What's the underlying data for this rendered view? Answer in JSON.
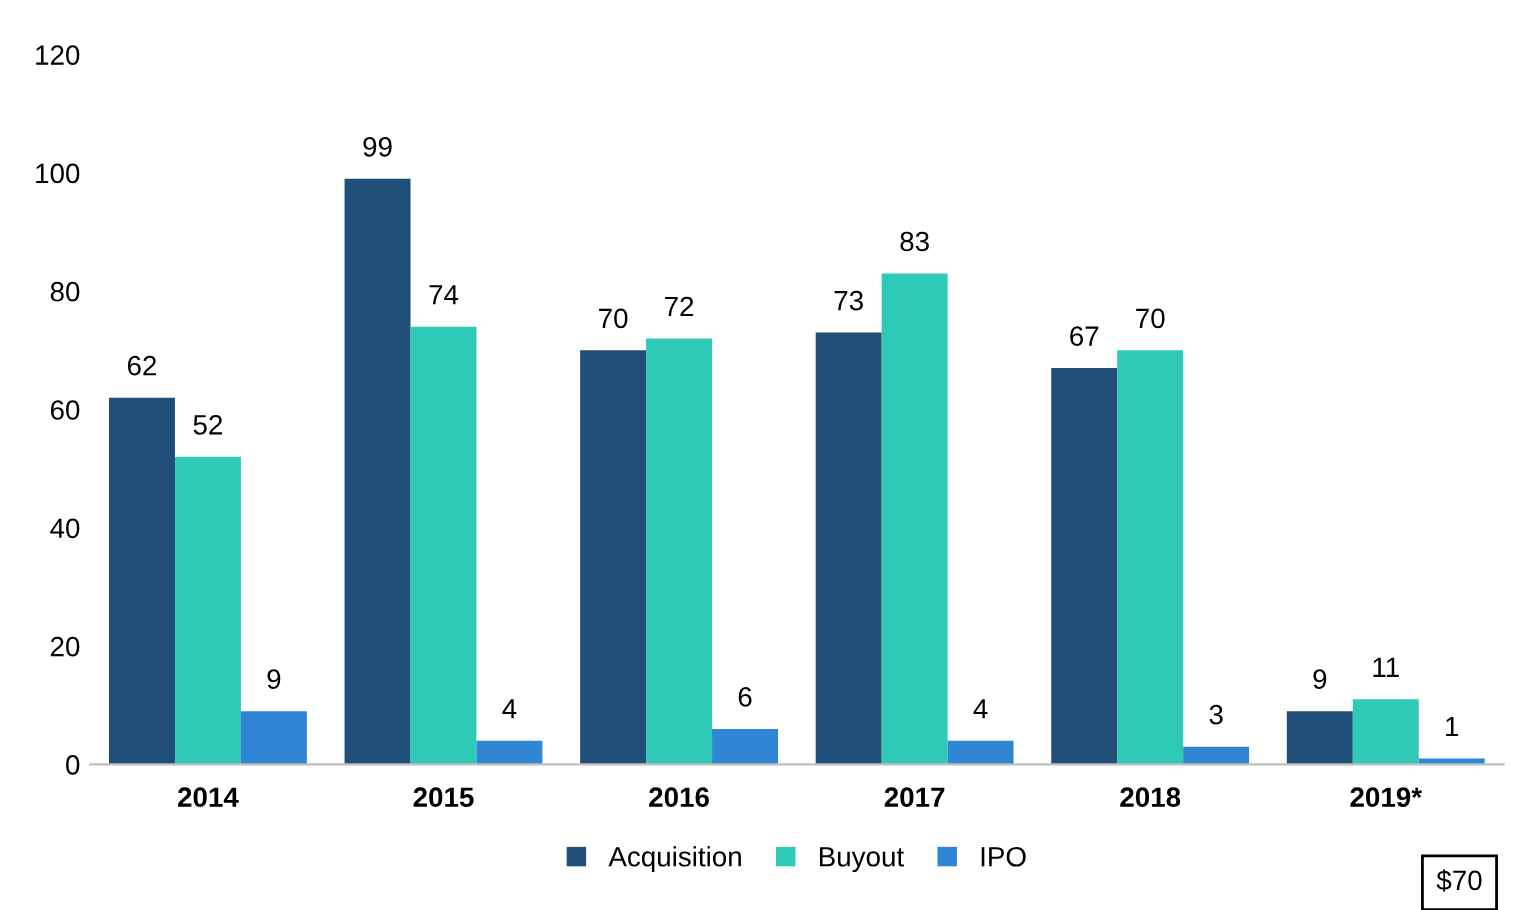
{
  "chart_data": {
    "type": "bar",
    "categories": [
      "2014",
      "2015",
      "2016",
      "2017",
      "2018",
      "2019*"
    ],
    "series": [
      {
        "name": "Acquisition",
        "color": "#1f4e79",
        "values": [
          62,
          99,
          70,
          73,
          67,
          9
        ]
      },
      {
        "name": "Buyout",
        "color": "#2ec9b7",
        "values": [
          52,
          74,
          72,
          83,
          70,
          11
        ]
      },
      {
        "name": "IPO",
        "color": "#2e86d4",
        "values": [
          9,
          4,
          6,
          4,
          3,
          1
        ]
      }
    ],
    "ylim": [
      0,
      120
    ],
    "yticks": [
      0,
      20,
      40,
      60,
      80,
      100,
      120
    ],
    "grid": false,
    "legend": "bottom",
    "data_labels": true,
    "annotations": [
      "$70"
    ]
  }
}
